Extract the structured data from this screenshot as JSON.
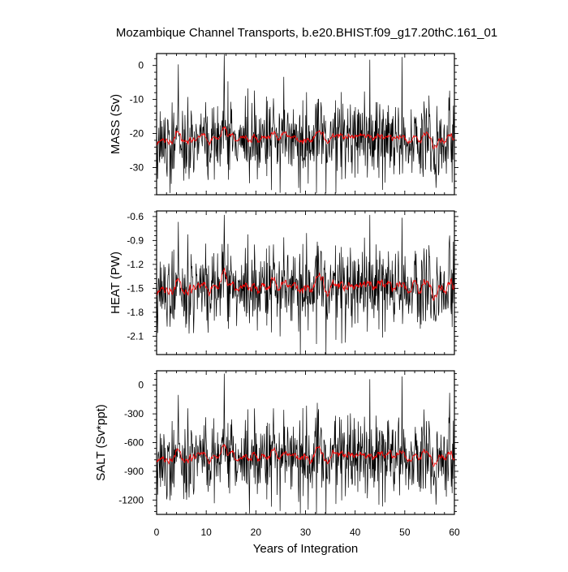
{
  "figure": {
    "title": "Mozambique Channel Transports, b.e20.BHIST.f09_g17.20thC.161_01",
    "xlabel": "Years of Integration"
  },
  "colors": {
    "raw": "#000000",
    "smoothed": "#ff0000"
  },
  "chart_data": [
    {
      "type": "line",
      "ylabel": "MASS (Sv)",
      "xlim": [
        0,
        60
      ],
      "ylim": [
        -38,
        3.5
      ],
      "xticks": [
        0,
        10,
        20,
        30,
        40,
        50,
        60
      ],
      "yticks": [
        0,
        -10,
        -20,
        -30
      ],
      "ytick_labels": [
        "0",
        "-10",
        "-20",
        "-30"
      ],
      "series": [
        {
          "role": "monthly",
          "color": "#000000",
          "n_points": 720,
          "mean": -22,
          "range": [
            -37.5,
            3.3
          ]
        },
        {
          "role": "smoothed",
          "color": "#ff0000",
          "n_points": 720,
          "mean": -21.5,
          "range": [
            -24.5,
            -18
          ]
        }
      ]
    },
    {
      "type": "line",
      "ylabel": "HEAT (PW)",
      "xlim": [
        0,
        60
      ],
      "ylim": [
        -2.33,
        -0.53
      ],
      "xticks": [
        0,
        10,
        20,
        30,
        40,
        50,
        60
      ],
      "yticks": [
        -0.6,
        -0.9,
        -1.2,
        -1.5,
        -1.8,
        -2.1
      ],
      "ytick_labels": [
        "-0.6",
        "-0.9",
        "-1.2",
        "-1.5",
        "-1.8",
        "-2.1"
      ],
      "series": [
        {
          "role": "monthly",
          "color": "#000000",
          "n_points": 720,
          "mean": -1.5,
          "range": [
            -2.33,
            -0.58
          ]
        },
        {
          "role": "smoothed",
          "color": "#ff0000",
          "n_points": 720,
          "mean": -1.5,
          "range": [
            -1.65,
            -1.25
          ]
        }
      ]
    },
    {
      "type": "line",
      "ylabel": "SALT (Sv*ppt)",
      "xlim": [
        0,
        60
      ],
      "ylim": [
        -1350,
        150
      ],
      "xticks": [
        0,
        10,
        20,
        30,
        40,
        50,
        60
      ],
      "yticks": [
        0,
        -300,
        -600,
        -900,
        -1200
      ],
      "ytick_labels": [
        "0",
        "-300",
        "-600",
        "-900",
        "-1200"
      ],
      "series": [
        {
          "role": "monthly",
          "color": "#000000",
          "n_points": 720,
          "mean": -760,
          "range": [
            -1340,
            120
          ]
        },
        {
          "role": "smoothed",
          "color": "#ff0000",
          "n_points": 720,
          "mean": -740,
          "range": [
            -850,
            -620
          ]
        }
      ]
    }
  ]
}
